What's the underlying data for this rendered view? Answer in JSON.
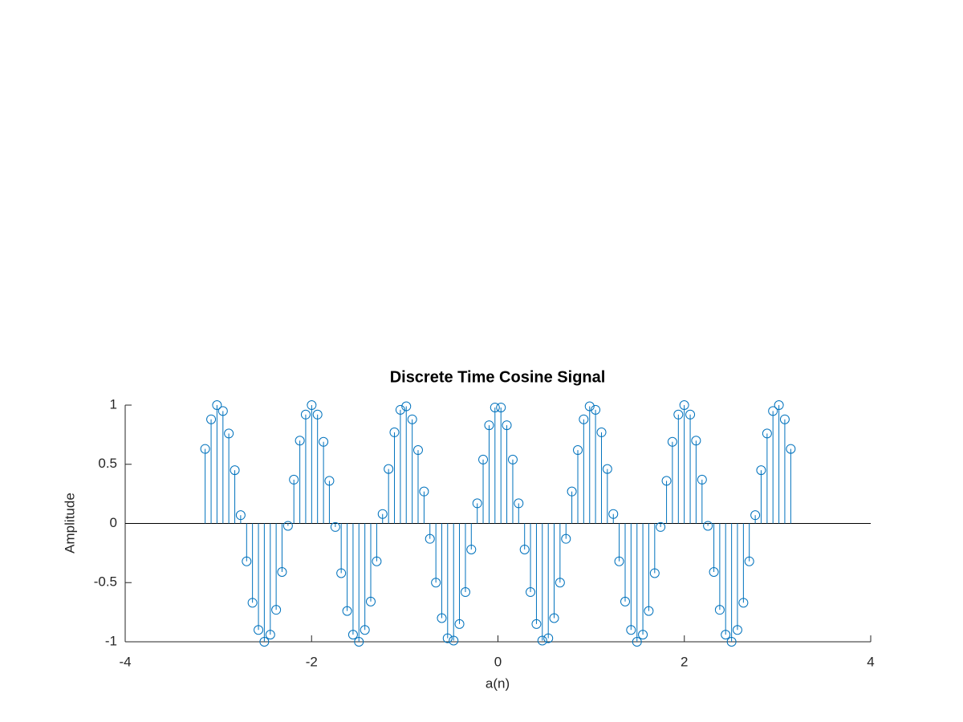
{
  "chart_data": {
    "type": "stem",
    "title": "Discrete Time Cosine Signal",
    "x_label": "a(n)",
    "y_label": "Amplitude",
    "x": [
      -3.142,
      -3.078,
      -3.015,
      -2.951,
      -2.888,
      -2.824,
      -2.761,
      -2.697,
      -2.634,
      -2.57,
      -2.507,
      -2.443,
      -2.38,
      -2.317,
      -2.253,
      -2.19,
      -2.126,
      -2.063,
      -1.999,
      -1.936,
      -1.872,
      -1.809,
      -1.745,
      -1.682,
      -1.618,
      -1.555,
      -1.492,
      -1.428,
      -1.365,
      -1.301,
      -1.238,
      -1.174,
      -1.111,
      -1.047,
      -0.984,
      -0.92,
      -0.857,
      -0.793,
      -0.73,
      -0.666,
      -0.603,
      -0.54,
      -0.476,
      -0.413,
      -0.349,
      -0.286,
      -0.222,
      -0.159,
      -0.095,
      -0.032,
      0.032,
      0.095,
      0.159,
      0.222,
      0.286,
      0.349,
      0.413,
      0.476,
      0.54,
      0.603,
      0.666,
      0.73,
      0.793,
      0.857,
      0.92,
      0.984,
      1.047,
      1.111,
      1.174,
      1.238,
      1.301,
      1.365,
      1.428,
      1.492,
      1.555,
      1.618,
      1.682,
      1.745,
      1.809,
      1.872,
      1.936,
      1.999,
      2.063,
      2.126,
      2.19,
      2.253,
      2.317,
      2.38,
      2.443,
      2.507,
      2.57,
      2.634,
      2.697,
      2.761,
      2.824,
      2.888,
      2.951,
      3.015,
      3.078,
      3.142
    ],
    "values": [
      0.63,
      0.88,
      1.0,
      0.95,
      0.76,
      0.45,
      0.07,
      -0.32,
      -0.67,
      -0.9,
      -1.0,
      -0.94,
      -0.73,
      -0.41,
      -0.02,
      0.37,
      0.7,
      0.92,
      1.0,
      0.92,
      0.69,
      0.36,
      -0.03,
      -0.42,
      -0.74,
      -0.94,
      -1.0,
      -0.9,
      -0.66,
      -0.32,
      0.08,
      0.46,
      0.77,
      0.96,
      0.99,
      0.88,
      0.62,
      0.27,
      -0.13,
      -0.5,
      -0.8,
      -0.97,
      -0.99,
      -0.85,
      -0.58,
      -0.22,
      0.17,
      0.54,
      0.83,
      0.98,
      0.98,
      0.83,
      0.54,
      0.17,
      -0.22,
      -0.58,
      -0.85,
      -0.99,
      -0.97,
      -0.8,
      -0.5,
      -0.13,
      0.27,
      0.62,
      0.88,
      0.99,
      0.96,
      0.77,
      0.46,
      0.08,
      -0.32,
      -0.66,
      -0.9,
      -1.0,
      -0.94,
      -0.74,
      -0.42,
      -0.03,
      0.36,
      0.69,
      0.92,
      1.0,
      0.92,
      0.7,
      0.37,
      -0.02,
      -0.41,
      -0.73,
      -0.94,
      -1.0,
      -0.9,
      -0.67,
      -0.32,
      0.07,
      0.45,
      0.76,
      0.95,
      1.0,
      0.88,
      0.63
    ],
    "color": "#0072bd",
    "xlim": [
      -4,
      4
    ],
    "xticks": [
      -4,
      -2,
      0,
      2,
      4
    ],
    "ylim": [
      -1,
      1
    ],
    "yticks": [
      -1,
      -0.5,
      0,
      0.5,
      1
    ]
  }
}
